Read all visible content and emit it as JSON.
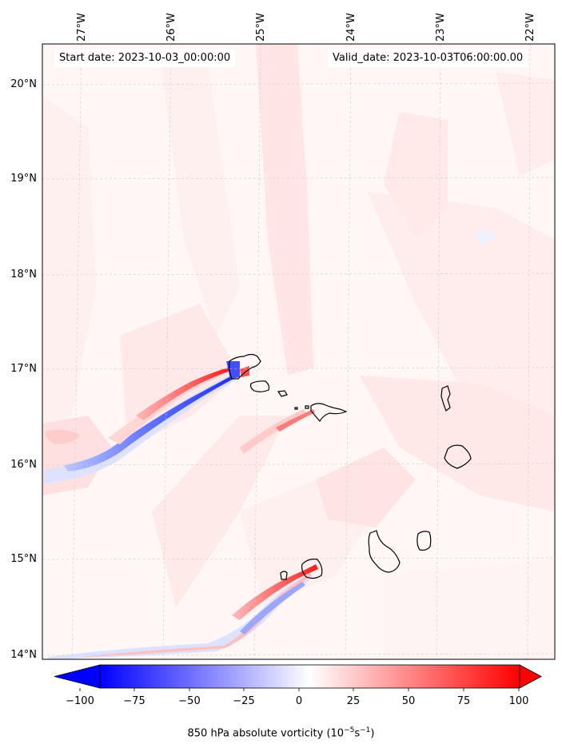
{
  "map": {
    "start_date": "Start date: 2023-10-03_00:00:00",
    "valid_date": "Valid_date: 2023-10-03T06:00:00.00",
    "lon_labels": [
      "27°W",
      "26°W",
      "25°W",
      "24°W",
      "23°W",
      "22°W"
    ],
    "lat_labels": [
      "20°N",
      "19°N",
      "18°N",
      "17°N",
      "16°N",
      "15°N",
      "14°N"
    ],
    "islands": [
      "Santo Antão",
      "São Vicente",
      "Santa Luzia",
      "Branco",
      "Raso",
      "São Nicolau",
      "Sal",
      "Boa Vista",
      "Maio",
      "Santiago",
      "Fogo",
      "Brava"
    ],
    "colors": {
      "min": "#0000ff",
      "mid": "#ffffff",
      "max": "#ff0000",
      "coast": "#000000",
      "grid": "#cccccc"
    }
  },
  "colorbar": {
    "ticks": [
      "−100",
      "−75",
      "−50",
      "−25",
      "0",
      "25",
      "50",
      "75",
      "100"
    ],
    "tick_values": [
      -100,
      -75,
      -50,
      -25,
      0,
      25,
      50,
      75,
      100
    ],
    "range": [
      -100,
      100
    ],
    "label_text": "850 hPa absolute vorticity (10",
    "label_exp1": "−5",
    "label_mid": "s",
    "label_exp2": "−1",
    "label_close": ")"
  }
}
